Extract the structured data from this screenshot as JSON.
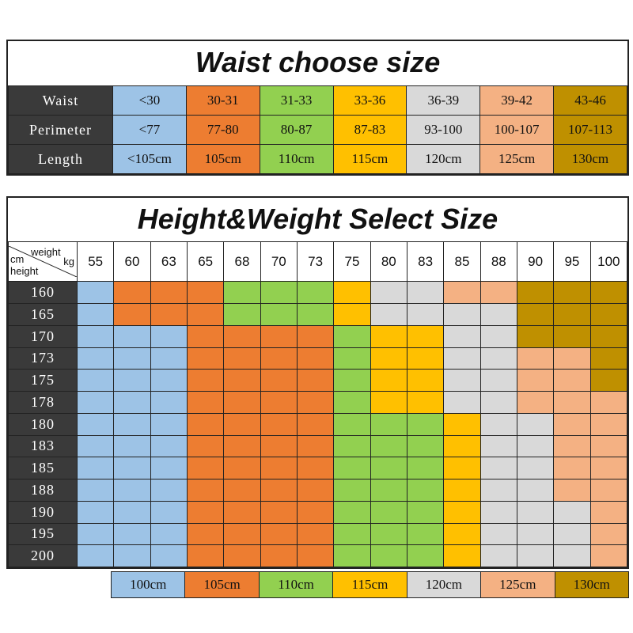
{
  "colors": {
    "B": "#9dc3e6",
    "O": "#ed7d31",
    "G": "#92d050",
    "Y": "#ffc000",
    "L": "#d9d9d9",
    "P": "#f4b183",
    "D": "#bf9000",
    "header": "#3a3a3a"
  },
  "waist": {
    "title": "Waist choose size",
    "size_colors": [
      "B",
      "O",
      "G",
      "Y",
      "L",
      "P",
      "D"
    ],
    "rows": [
      {
        "label": "Waist",
        "values": [
          "<30",
          "30-31",
          "31-33",
          "33-36",
          "36-39",
          "39-42",
          "43-46"
        ]
      },
      {
        "label": "Perimeter",
        "values": [
          "<77",
          "77-80",
          "80-87",
          "87-83",
          "93-100",
          "100-107",
          "107-113"
        ]
      },
      {
        "label": "Length",
        "values": [
          "<105cm",
          "105cm",
          "110cm",
          "115cm",
          "120cm",
          "125cm",
          "130cm"
        ]
      }
    ]
  },
  "hw": {
    "title": "Height&Weight Select Size",
    "corner": {
      "cm": "cm",
      "weight": "weight",
      "kg": "kg",
      "height": "height"
    },
    "weights": [
      "55",
      "60",
      "63",
      "65",
      "68",
      "70",
      "73",
      "75",
      "80",
      "83",
      "85",
      "88",
      "90",
      "95",
      "100"
    ],
    "rows": [
      {
        "height": "160",
        "sizes": "BOOOGGGYLLPPDDD"
      },
      {
        "height": "165",
        "sizes": "BOOOGGGYLLLLDDD"
      },
      {
        "height": "170",
        "sizes": "BBBOOOOGYYLLDDD"
      },
      {
        "height": "173",
        "sizes": "BBBOOOOGYYLLPPD"
      },
      {
        "height": "175",
        "sizes": "BBBOOOOGYYLLPPD"
      },
      {
        "height": "178",
        "sizes": "BBBOOOOGYYLLPPP"
      },
      {
        "height": "180",
        "sizes": "BBBOOOOGGGYLLPP"
      },
      {
        "height": "183",
        "sizes": "BBBOOOOGGGYLLPP"
      },
      {
        "height": "185",
        "sizes": "BBBOOOOGGGYLLPP"
      },
      {
        "height": "188",
        "sizes": "BBBOOOOGGGYLLPP"
      },
      {
        "height": "190",
        "sizes": "BBBOOOOGGGYLLLP"
      },
      {
        "height": "195",
        "sizes": "BBBOOOOGGGYLLLP"
      },
      {
        "height": "200",
        "sizes": "BBBOOOOGGGYLLLP"
      }
    ]
  },
  "legend": [
    {
      "label": "100cm",
      "color": "B"
    },
    {
      "label": "105cm",
      "color": "O"
    },
    {
      "label": "110cm",
      "color": "G"
    },
    {
      "label": "115cm",
      "color": "Y"
    },
    {
      "label": "120cm",
      "color": "L"
    },
    {
      "label": "125cm",
      "color": "P"
    },
    {
      "label": "130cm",
      "color": "D"
    }
  ]
}
